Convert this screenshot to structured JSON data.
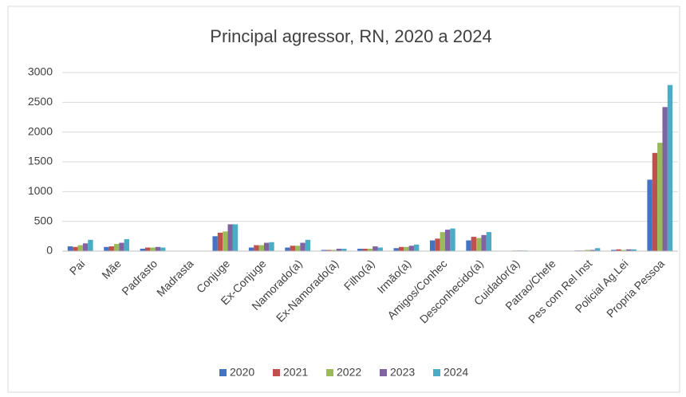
{
  "chart_data": {
    "type": "bar",
    "title": "Principal agressor, RN, 2020 a 2024",
    "categories": [
      "Pai",
      "Mãe",
      "Padrasto",
      "Madrasta",
      "Conjuge",
      "Ex-Conjuge",
      "Namorado(a)",
      "Ex-Namorado(a)",
      "Filho(a)",
      "Irmão(a)",
      "Amigos/Conhec",
      "Desconhecido(a)",
      "Cuidador(a)",
      "Patrao/Chefe",
      "Pes com Rel Inst",
      "Policial Ag.Lei",
      "Propria Pessoa"
    ],
    "series": [
      {
        "name": "2020",
        "color": "#4472c4",
        "values": [
          80,
          70,
          40,
          5,
          250,
          60,
          60,
          20,
          40,
          50,
          180,
          180,
          5,
          2,
          10,
          20,
          1200
        ]
      },
      {
        "name": "2021",
        "color": "#c0504d",
        "values": [
          70,
          80,
          60,
          5,
          310,
          100,
          90,
          20,
          40,
          70,
          210,
          240,
          5,
          2,
          10,
          30,
          1650
        ]
      },
      {
        "name": "2022",
        "color": "#9bbb59",
        "values": [
          100,
          120,
          60,
          5,
          330,
          100,
          90,
          20,
          40,
          70,
          320,
          220,
          10,
          2,
          20,
          20,
          1820
        ]
      },
      {
        "name": "2023",
        "color": "#8064a2",
        "values": [
          130,
          140,
          70,
          5,
          450,
          140,
          140,
          40,
          80,
          90,
          360,
          270,
          10,
          2,
          20,
          30,
          2420
        ]
      },
      {
        "name": "2024",
        "color": "#4bacc6",
        "values": [
          190,
          200,
          60,
          5,
          450,
          150,
          190,
          40,
          60,
          110,
          380,
          320,
          10,
          2,
          50,
          30,
          2790
        ]
      }
    ],
    "ylim": [
      0,
      3000
    ],
    "yticks": [
      0,
      500,
      1000,
      1500,
      2000,
      2500,
      3000
    ],
    "grid": true,
    "legend": "bottom"
  }
}
